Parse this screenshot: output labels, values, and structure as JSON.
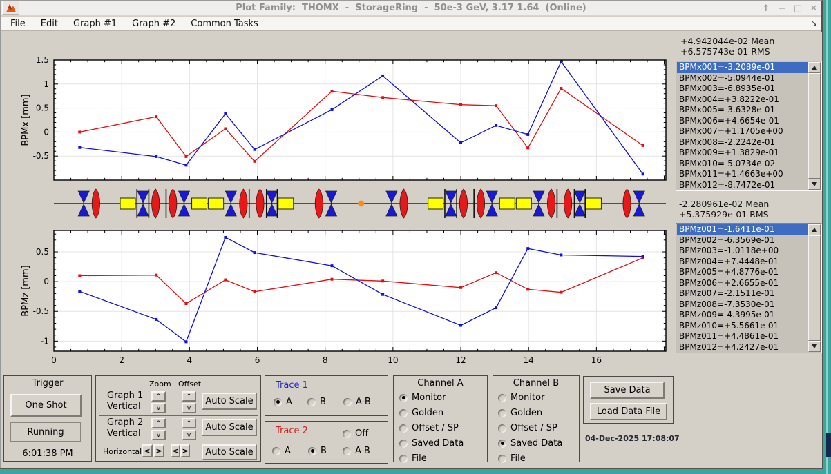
{
  "window": {
    "title": "Plot Family:  THOMX  -  StorageRing  -  50e-3 GeV, 3.17 1.64  (Online)",
    "controls": {
      "restore": "↑",
      "minimize": "−",
      "maximize": "□",
      "close": "✕"
    }
  },
  "menu": {
    "items": [
      "File",
      "Edit",
      "Graph #1",
      "Graph #2",
      "Common Tasks"
    ],
    "overflow_arrow": "↘"
  },
  "stats": {
    "x_mean": "+4.942044e-02 Mean",
    "x_rms": "+6.575743e-01 RMS",
    "z_mean": "-2.280961e-02 Mean",
    "z_rms": "+5.375929e-01 RMS"
  },
  "lists": {
    "selected_index": 0,
    "bpmx": [
      "BPMx001=-3.2089e-01",
      "BPMx002=-5.0944e-01",
      "BPMx003=-6.8935e-01",
      "BPMx004=+3.8222e-01",
      "BPMx005=-3.6328e-01",
      "BPMx006=+4.6654e-01",
      "BPMx007=+1.1705e+00",
      "BPMx008=-2.2242e-01",
      "BPMx009=+1.3829e-01",
      "BPMx010=-5.0734e-02",
      "BPMx011=+1.4663e+00",
      "BPMx012=-8.7472e-01"
    ],
    "bpmz": [
      "BPMz001=-1.6411e-01",
      "BPMz002=-6.3569e-01",
      "BPMz003=-1.0118e+00",
      "BPMz004=+7.4448e-01",
      "BPMz005=+4.8776e-01",
      "BPMz006=+2.6655e-01",
      "BPMz007=-2.1511e-01",
      "BPMz008=-7.3530e-01",
      "BPMz009=-4.3995e-01",
      "BPMz010=+5.5661e-01",
      "BPMz011=+4.4861e-01",
      "BPMz012=+4.2427e-01"
    ]
  },
  "chart_data": [
    {
      "type": "line",
      "title": "",
      "xlabel": "",
      "ylabel": "BPMx [mm]",
      "xlim": [
        0,
        18.05
      ],
      "ylim": [
        -1.0,
        1.5
      ],
      "xticks": [
        0,
        2,
        4,
        6,
        8,
        10,
        12,
        14,
        16
      ],
      "yticks": [
        -0.5,
        0,
        0.5,
        1,
        1.5
      ],
      "grid": true,
      "show_x_labels": false,
      "x": [
        0.76,
        3.02,
        3.9,
        5.06,
        5.92,
        8.2,
        9.7,
        12.0,
        13.04,
        13.98,
        14.96,
        17.37
      ],
      "series": [
        {
          "name": "Trace 2 (B: Saved Data)",
          "color": "#e01010",
          "values": [
            0.0,
            0.32,
            -0.51,
            0.07,
            -0.61,
            0.85,
            0.72,
            0.57,
            0.55,
            -0.33,
            0.91,
            -0.28
          ]
        },
        {
          "name": "Trace 1 (A: Monitor)",
          "color": "#1010e0",
          "values": [
            -0.32089,
            -0.50944,
            -0.68935,
            0.38222,
            -0.36328,
            0.46654,
            1.1705,
            -0.22242,
            0.13829,
            -0.05073,
            1.4663,
            -0.87472
          ]
        }
      ]
    },
    {
      "type": "line",
      "title": "",
      "xlabel": "",
      "ylabel": "BPMz [mm]",
      "xlim": [
        0,
        18.05
      ],
      "ylim": [
        -1.17,
        0.86
      ],
      "xticks": [
        0,
        2,
        4,
        6,
        8,
        10,
        12,
        14,
        16
      ],
      "yticks": [
        -1,
        -0.5,
        0,
        0.5
      ],
      "grid": true,
      "show_x_labels": true,
      "x": [
        0.76,
        3.02,
        3.9,
        5.06,
        5.92,
        8.2,
        9.7,
        12.0,
        13.04,
        13.98,
        14.96,
        17.37
      ],
      "series": [
        {
          "name": "Trace 2 (B: Saved Data)",
          "color": "#e01010",
          "values": [
            0.1,
            0.11,
            -0.37,
            0.03,
            -0.17,
            0.04,
            0.01,
            -0.1,
            0.15,
            -0.13,
            -0.18,
            0.4
          ]
        },
        {
          "name": "Trace 1 (A: Monitor)",
          "color": "#1010e0",
          "values": [
            -0.16411,
            -0.63569,
            -1.0118,
            0.74448,
            0.48776,
            0.26655,
            -0.21511,
            -0.7353,
            -0.43995,
            0.55661,
            0.44861,
            0.42427
          ]
        }
      ]
    }
  ],
  "lattice": {
    "colors": {
      "qf": "#e81818",
      "qd": "#1818d8",
      "bend": "#ffff00",
      "marker": "#111111",
      "ip": "#ff8d13"
    },
    "elements": [
      {
        "type": "qd",
        "x": 0.88
      },
      {
        "type": "qf",
        "x": 1.24
      },
      {
        "type": "bend",
        "x": 2.18
      },
      {
        "type": "marker",
        "x": 2.45
      },
      {
        "type": "qd",
        "x": 2.63
      },
      {
        "type": "marker",
        "x": 2.8
      },
      {
        "type": "qf",
        "x": 3.0
      },
      {
        "type": "marker",
        "x": 3.31
      },
      {
        "type": "qf",
        "x": 3.51
      },
      {
        "type": "qd",
        "x": 3.84
      },
      {
        "type": "bend",
        "x": 4.29
      },
      {
        "type": "bend",
        "x": 4.78
      },
      {
        "type": "qd",
        "x": 5.22
      },
      {
        "type": "qf",
        "x": 5.59
      },
      {
        "type": "marker",
        "x": 5.76
      },
      {
        "type": "qf",
        "x": 6.08
      },
      {
        "type": "marker",
        "x": 6.27
      },
      {
        "type": "qd",
        "x": 6.43
      },
      {
        "type": "marker",
        "x": 6.59
      },
      {
        "type": "bend",
        "x": 6.84
      },
      {
        "type": "qf",
        "x": 7.82
      },
      {
        "type": "qd",
        "x": 8.18
      },
      {
        "type": "ip",
        "x": 9.06
      },
      {
        "type": "qd",
        "x": 9.96
      },
      {
        "type": "qf",
        "x": 10.32
      },
      {
        "type": "bend",
        "x": 11.26
      },
      {
        "type": "marker",
        "x": 11.53
      },
      {
        "type": "qd",
        "x": 11.71
      },
      {
        "type": "marker",
        "x": 11.88
      },
      {
        "type": "qf",
        "x": 12.08
      },
      {
        "type": "marker",
        "x": 12.39
      },
      {
        "type": "qf",
        "x": 12.59
      },
      {
        "type": "qd",
        "x": 12.92
      },
      {
        "type": "bend",
        "x": 13.37
      },
      {
        "type": "bend",
        "x": 13.86
      },
      {
        "type": "qd",
        "x": 14.3
      },
      {
        "type": "qf",
        "x": 14.67
      },
      {
        "type": "marker",
        "x": 14.84
      },
      {
        "type": "qf",
        "x": 15.16
      },
      {
        "type": "marker",
        "x": 15.35
      },
      {
        "type": "qd",
        "x": 15.51
      },
      {
        "type": "marker",
        "x": 15.67
      },
      {
        "type": "bend",
        "x": 15.92
      },
      {
        "type": "qf",
        "x": 16.9
      },
      {
        "type": "qd",
        "x": 17.26
      }
    ]
  },
  "controls": {
    "trigger": {
      "title": "Trigger",
      "one_shot": "One Shot",
      "status": "Running",
      "time": "6:01:38 PM"
    },
    "scale": {
      "headers": [
        "Zoom",
        "Offset"
      ],
      "row1_line1": "Graph 1",
      "row1_line2": "Vertical",
      "row2_line1": "Graph 2",
      "row2_line2": "Vertical",
      "row3_label": "Horizontal",
      "auto_scale": "Auto Scale",
      "spin_up": "^",
      "spin_down": "v",
      "left_arrow": "<",
      "right_arrow": ">"
    },
    "trace1": {
      "title": "Trace 1",
      "options": [
        {
          "label": "A",
          "selected": true
        },
        {
          "label": "B",
          "selected": false
        },
        {
          "label": "A-B",
          "selected": false
        }
      ]
    },
    "trace2": {
      "title": "Trace 2",
      "options": [
        {
          "label": "Off",
          "selected": false
        },
        {
          "label": "A",
          "selected": false
        },
        {
          "label": "B",
          "selected": true
        },
        {
          "label": "A-B",
          "selected": false
        }
      ]
    },
    "channel_a": {
      "title": "Channel A",
      "options": [
        {
          "label": "Monitor",
          "selected": true
        },
        {
          "label": "Golden",
          "selected": false
        },
        {
          "label": "Offset / SP",
          "selected": false
        },
        {
          "label": "Saved Data",
          "selected": false
        },
        {
          "label": "File",
          "selected": false
        }
      ]
    },
    "channel_b": {
      "title": "Channel B",
      "options": [
        {
          "label": "Monitor",
          "selected": false
        },
        {
          "label": "Golden",
          "selected": false
        },
        {
          "label": "Offset / SP",
          "selected": false
        },
        {
          "label": "Saved Data",
          "selected": true
        },
        {
          "label": "File",
          "selected": false
        }
      ]
    },
    "data_io": {
      "save": "Save Data",
      "load": "Load Data File",
      "timestamp": "04-Dec-2025 17:08:07"
    }
  }
}
